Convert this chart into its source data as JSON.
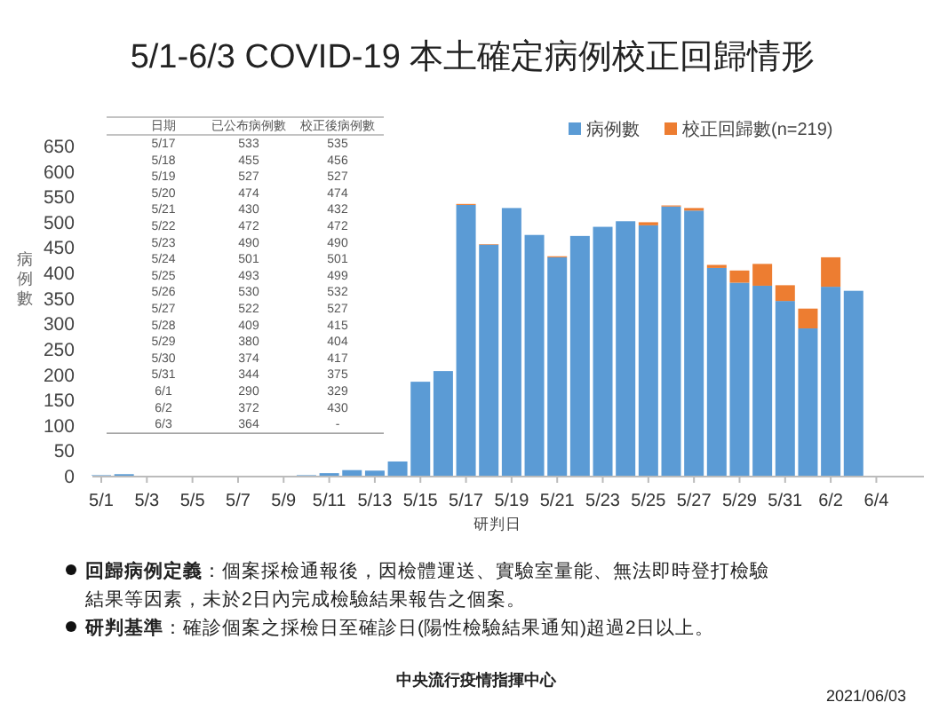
{
  "chart_data": {
    "type": "bar",
    "stacked": true,
    "title": "5/1-6/3 COVID-19 本土確定病例校正回歸情形",
    "xlabel": "研判日",
    "ylabel": "病例數",
    "categories": [
      "5/1",
      null,
      "5/3",
      null,
      "5/5",
      null,
      "5/7",
      null,
      "5/9",
      null,
      "5/11",
      null,
      "5/13",
      null,
      "5/15",
      null,
      "5/17",
      null,
      "5/19",
      null,
      "5/21",
      null,
      "5/23",
      null,
      "5/25",
      null,
      "5/27",
      null,
      "5/29",
      null,
      "5/31",
      null,
      "6/2",
      null,
      "6/4"
    ],
    "series": [
      {
        "name": "病例數",
        "color": "#5b9bd5",
        "values": [
          1,
          3,
          0,
          0,
          0,
          0,
          0,
          0,
          0,
          1,
          5,
          11,
          10,
          28,
          185,
          206,
          533,
          455,
          527,
          474,
          430,
          472,
          490,
          501,
          493,
          530,
          522,
          409,
          380,
          374,
          344,
          290,
          372,
          364,
          null
        ]
      },
      {
        "name": "校正回歸數(n=219)",
        "color": "#ed7d31",
        "values": [
          0,
          0,
          0,
          0,
          0,
          0,
          0,
          0,
          0,
          0,
          0,
          0,
          0,
          0,
          0,
          0,
          2,
          1,
          0,
          0,
          2,
          0,
          0,
          0,
          6,
          2,
          5,
          6,
          24,
          43,
          31,
          39,
          58,
          0,
          null
        ]
      }
    ],
    "ylim": [
      0,
      650
    ],
    "yticks": [
      0,
      50,
      100,
      150,
      200,
      250,
      300,
      350,
      400,
      450,
      500,
      550,
      600,
      650
    ],
    "legend": "top right",
    "annotations": [
      "日期",
      "已公布病例數",
      "校正後病例數",
      "5/17",
      "533",
      "535",
      "5/18",
      "455",
      "456",
      "5/19",
      "527",
      "527",
      "5/20",
      "474",
      "474",
      "5/21",
      "430",
      "432",
      "5/22",
      "472",
      "472",
      "5/23",
      "490",
      "490",
      "5/24",
      "501",
      "501",
      "5/25",
      "493",
      "499",
      "5/26",
      "530",
      "532",
      "5/27",
      "522",
      "527",
      "5/28",
      "409",
      "415",
      "5/29",
      "380",
      "404",
      "5/30",
      "374",
      "417",
      "5/31",
      "344",
      "375",
      "6/1",
      "290",
      "329",
      "6/2",
      "372",
      "430",
      "6/3",
      "364",
      "-",
      "**回歸病例定義**：個案採檢通報後，因檢體運送、實驗室量能、無法即時登打檢驗結果等因素，未於2日內完成檢驗結果報告之個案。",
      "**研判基準**：確診個案之採檢日至確診日(陽性檢驗結果通知)超過2日以上。",
      "中央流行疫情指揮中心",
      "2021/06/03"
    ]
  }
}
